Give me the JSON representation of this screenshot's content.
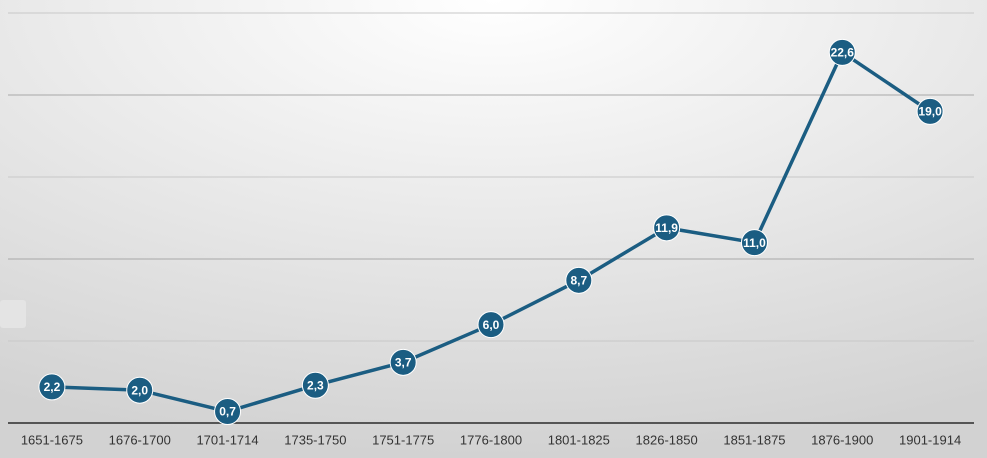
{
  "chart_data": {
    "type": "line",
    "categories": [
      "1651-1675",
      "1676-1700",
      "1701-1714",
      "1735-1750",
      "1751-1775",
      "1776-1800",
      "1801-1825",
      "1826-1850",
      "1851-1875",
      "1876-1900",
      "1901-1914"
    ],
    "series": [
      {
        "color": "#1b5d82",
        "values": [
          2.2,
          2.0,
          0.7,
          2.3,
          3.7,
          6.0,
          8.7,
          11.9,
          11.0,
          22.6,
          19.0
        ],
        "value_labels": [
          "2,2",
          "2,0",
          "0,7",
          "2,3",
          "3,7",
          "6,0",
          "8,7",
          "11,9",
          "11,0",
          "22,6",
          "19,0"
        ]
      }
    ],
    "ylim": [
      0,
      25
    ],
    "yticks": [
      0,
      5,
      10,
      15,
      20,
      25
    ],
    "grid": true
  }
}
